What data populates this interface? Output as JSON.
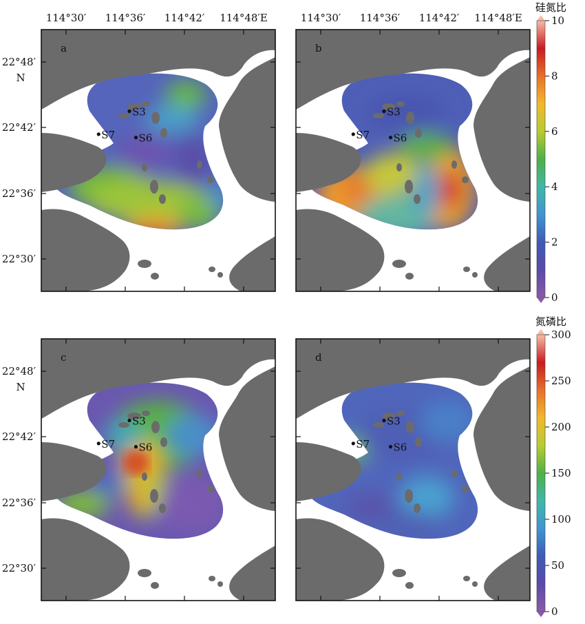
{
  "axes": {
    "lon_ticks": [
      "114°30′",
      "114°36′",
      "114°42′",
      "114°48′E"
    ],
    "lat_ticks": [
      "22°48′",
      "22°42′",
      "22°36′",
      "22°30′"
    ],
    "north_label": "N"
  },
  "panels": [
    {
      "label": "a",
      "scale": "si_n",
      "palette": "a"
    },
    {
      "label": "b",
      "scale": "si_n",
      "palette": "b"
    },
    {
      "label": "c",
      "scale": "n_p",
      "palette": "c"
    },
    {
      "label": "d",
      "scale": "n_p",
      "palette": "d"
    }
  ],
  "stations": [
    {
      "name": "S3",
      "lon": 114.607,
      "lat": 22.725
    },
    {
      "name": "S7",
      "lon": 114.555,
      "lat": 22.69
    },
    {
      "name": "S6",
      "lon": 114.618,
      "lat": 22.685
    }
  ],
  "colorbars": [
    {
      "id": "si_n",
      "title": "硅氮比",
      "ticks": [
        "10",
        "8",
        "6",
        "4",
        "2",
        "0"
      ]
    },
    {
      "id": "n_p",
      "title": "氮磷比",
      "ticks": [
        "300",
        "250",
        "200",
        "150",
        "100",
        "50",
        "0"
      ]
    }
  ],
  "colors": {
    "land": "#6b6b6b",
    "sea": "#ffffff",
    "ramp": [
      "#7a4aa0",
      "#4a56b0",
      "#3f8fd0",
      "#3fb8a0",
      "#55b040",
      "#b9cc33",
      "#f0b02a",
      "#e8742a",
      "#d42020",
      "#f6b8a0"
    ]
  }
}
